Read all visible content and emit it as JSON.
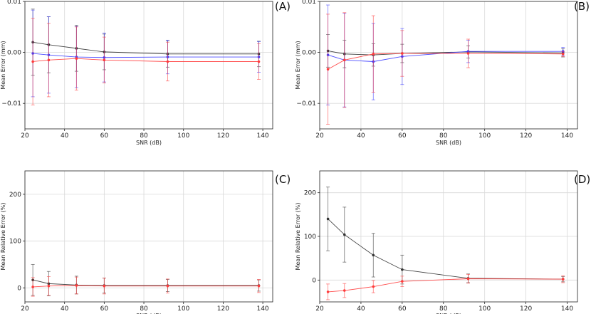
{
  "colors": {
    "black_series": "#333333",
    "blue_series": "#3b3bff",
    "red_series": "#ff3b3b",
    "purple_errorbar": "#9b3bd8",
    "grid": "#d9d9d9",
    "frame": "#222222"
  },
  "chart_data": [
    {
      "panel": "(A)",
      "type": "line",
      "xlabel": "SNR (dB)",
      "ylabel": "Mean Error (mm)",
      "xlim": [
        20,
        145
      ],
      "ylim": [
        -0.015,
        0.01
      ],
      "xticks": [
        20,
        40,
        60,
        80,
        100,
        120,
        140
      ],
      "yticks": [
        -0.01,
        0.0,
        0.01
      ],
      "ytick_labels": [
        "−0.01",
        "0.00",
        "0.01"
      ],
      "grid": true,
      "x": [
        24,
        32,
        46,
        60,
        92,
        138
      ],
      "series": [
        {
          "color": "black",
          "values": [
            0.002,
            0.0015,
            0.0008,
            0.0001,
            -0.0003,
            -0.0003
          ],
          "errors": [
            0.0065,
            0.0055,
            0.0045,
            0.0035,
            0.0026,
            0.0025
          ]
        },
        {
          "color": "blue",
          "values": [
            -0.0002,
            -0.0005,
            -0.0009,
            -0.001,
            -0.0009,
            -0.0009
          ],
          "errors": [
            0.0085,
            0.0075,
            0.006,
            0.0048,
            0.0033,
            0.003
          ]
        },
        {
          "color": "red",
          "values": [
            -0.0018,
            -0.0015,
            -0.0012,
            -0.0015,
            -0.0018,
            -0.0018
          ],
          "errors": [
            0.0085,
            0.0072,
            0.0062,
            0.0045,
            0.0038,
            0.0035
          ]
        }
      ]
    },
    {
      "panel": "(B)",
      "type": "line",
      "xlabel": "SNR (dB)",
      "ylabel": "Mean Error (mm)",
      "xlim": [
        20,
        145
      ],
      "ylim": [
        -0.015,
        0.01
      ],
      "xticks": [
        20,
        40,
        60,
        80,
        100,
        120,
        140
      ],
      "yticks": [
        -0.01,
        0.0,
        0.01
      ],
      "ytick_labels": [
        "−0.01",
        "0.00",
        "0.01"
      ],
      "grid": true,
      "x": [
        24,
        32,
        46,
        60,
        92,
        138
      ],
      "series": [
        {
          "color": "black",
          "values": [
            0.0003,
            -0.0003,
            -0.0005,
            -0.0002,
            0.0001,
            -0.0001
          ],
          "errors": [
            0.0032,
            0.0027,
            0.0022,
            0.0018,
            0.0012,
            0.0008
          ]
        },
        {
          "color": "blue",
          "values": [
            -0.0005,
            -0.0015,
            -0.0018,
            -0.0008,
            0.0002,
            0.0002
          ],
          "errors": [
            0.0098,
            0.0092,
            0.0075,
            0.0055,
            0.0022,
            0.0008
          ]
        },
        {
          "color": "red",
          "values": [
            -0.0033,
            -0.0015,
            -0.0003,
            -0.0002,
            -0.0002,
            -0.0003
          ],
          "errors": [
            0.0108,
            0.0093,
            0.0075,
            0.0045,
            0.0028,
            0.0005
          ]
        }
      ]
    },
    {
      "panel": "(C)",
      "type": "line",
      "xlabel": "SNR (dB)",
      "ylabel": "Mean Relative Error (%)",
      "xlim": [
        20,
        145
      ],
      "ylim": [
        -30,
        250
      ],
      "xticks": [
        20,
        40,
        60,
        80,
        100,
        120,
        140
      ],
      "yticks": [
        0,
        100,
        200
      ],
      "ytick_labels": [
        "0",
        "100",
        "200"
      ],
      "grid": true,
      "x": [
        24,
        32,
        46,
        60,
        92,
        138
      ],
      "series": [
        {
          "color": "black",
          "values": [
            17,
            9,
            6,
            5,
            5,
            5
          ],
          "errors": [
            33,
            26,
            19,
            16,
            13,
            12
          ]
        },
        {
          "color": "red",
          "values": [
            2,
            4,
            5,
            4,
            4,
            4
          ],
          "errors": [
            20,
            20,
            18,
            17,
            15,
            14
          ]
        }
      ]
    },
    {
      "panel": "(D)",
      "type": "line",
      "xlabel": "SNR (dB)",
      "ylabel": "Mean Relative Error (%)",
      "xlim": [
        20,
        145
      ],
      "ylim": [
        -50,
        250
      ],
      "xticks": [
        20,
        40,
        60,
        80,
        100,
        120,
        140
      ],
      "yticks": [
        0,
        100,
        200
      ],
      "ytick_labels": [
        "0",
        "100",
        "200"
      ],
      "grid": true,
      "x": [
        24,
        32,
        46,
        60,
        92,
        138
      ],
      "series": [
        {
          "color": "black",
          "values": [
            140,
            104,
            57,
            24,
            4,
            2
          ],
          "errors": [
            73,
            63,
            50,
            33,
            10,
            6
          ]
        },
        {
          "color": "red",
          "values": [
            -27,
            -24,
            -15,
            -3,
            3,
            2
          ],
          "errors": [
            18,
            16,
            14,
            12,
            10,
            8
          ]
        }
      ]
    }
  ]
}
